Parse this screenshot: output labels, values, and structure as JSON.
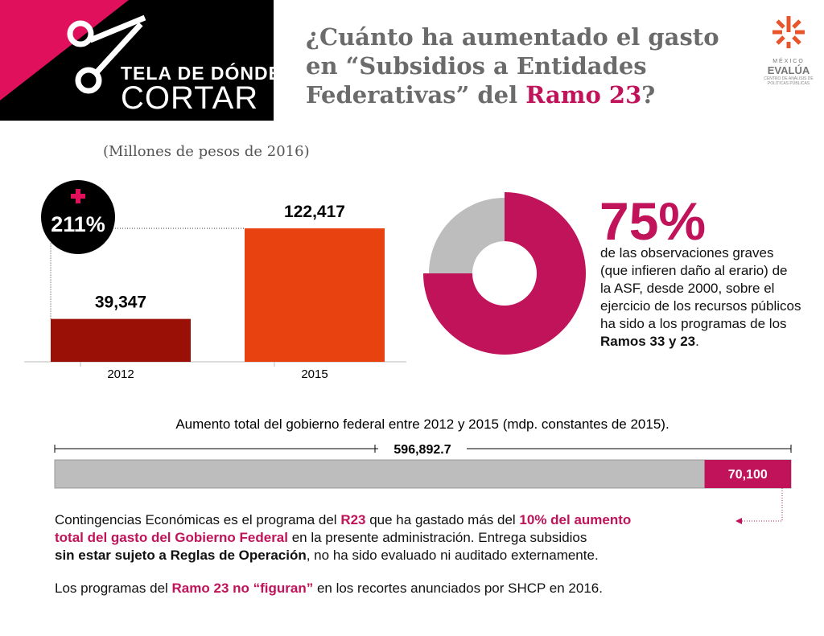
{
  "header": {
    "logo_line1": "TELA DE DÓNDE",
    "logo_line2": "CORTAR",
    "title": "¿Cuánto ha aumentado el gasto en “Subsidios a Entidades Federativas” del ",
    "title_highlight": "Ramo 23",
    "title_end": "?",
    "org_country": "MÉXICO",
    "org_name": "EVALÚA",
    "org_tagline": "CENTRO DE ANÁLISIS DE POLÍTICAS PÚBLICAS"
  },
  "chart_data": [
    {
      "type": "bar",
      "subtitle": "(Millones de pesos de 2016)",
      "categories": [
        "2012",
        "2015"
      ],
      "values": [
        39347,
        122417
      ],
      "value_labels": [
        "39,347",
        "122,417"
      ],
      "colors": [
        "#9b1006",
        "#e84211"
      ],
      "change_label": "211%"
    },
    {
      "type": "donut",
      "values": [
        75,
        25
      ],
      "value_labels": [
        "75%",
        null
      ],
      "colors": [
        "#c0135a",
        "#bdbdbd"
      ],
      "description": "de las observaciones graves (que infieren daño al erario) de la ASF, desde 2000, sobre el ejercicio de los recursos públicos ha sido a los programas de los ",
      "description_bold": "Ramos 33 y 23",
      "description_end": "."
    },
    {
      "type": "stacked-bar",
      "title": "Aumento total del gobierno federal entre 2012 y 2015 (mdp. constantes de 2015).",
      "total": 596892.7,
      "total_label": "596,892.7",
      "values": [
        70100
      ],
      "value_labels": [
        "70,100"
      ],
      "colors": [
        "#c0135a"
      ],
      "total_color": "#bdbdbd"
    }
  ],
  "notes": {
    "paragraph1": [
      "Contingencias Económicas es el programa del ",
      "R23",
      " que ha gastado más del ",
      "10% del aumento",
      "total del gasto del Gobierno Federal",
      " en la presente administración. Entrega subsidios",
      "sin estar sujeto a Reglas de Operación",
      ", no ha sido evaluado ni auditado externamente."
    ],
    "paragraph2": [
      "Los programas del ",
      "Ramo 23 no “figuran”",
      " en los recortes anunciados por SHCP en 2016."
    ]
  }
}
